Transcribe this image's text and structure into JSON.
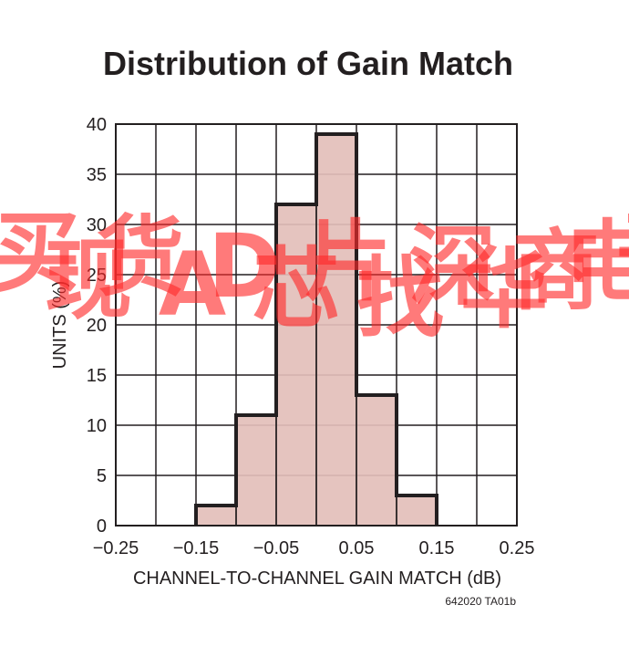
{
  "chart_data": {
    "type": "bar",
    "title": "Distribution of Gain Match",
    "xlabel": "CHANNEL-TO-CHANNEL GAIN MATCH (dB)",
    "ylabel": "UNITS (%)",
    "xlim": [
      -0.25,
      0.25
    ],
    "ylim": [
      0,
      40
    ],
    "xticks": [
      "−0.25",
      "−0.15",
      "−0.05",
      "0.05",
      "0.15",
      "0.25"
    ],
    "xtick_values": [
      -0.25,
      -0.15,
      -0.05,
      0.05,
      0.15,
      0.25
    ],
    "yticks": [
      "0",
      "5",
      "10",
      "15",
      "20",
      "25",
      "30",
      "35",
      "40"
    ],
    "ytick_values": [
      0,
      5,
      10,
      15,
      20,
      25,
      30,
      35,
      40
    ],
    "grid": true,
    "bins": [
      {
        "from": -0.15,
        "to": -0.1,
        "value": 2
      },
      {
        "from": -0.1,
        "to": -0.05,
        "value": 11
      },
      {
        "from": -0.05,
        "to": 0.0,
        "value": 32
      },
      {
        "from": 0.0,
        "to": 0.05,
        "value": 39
      },
      {
        "from": 0.05,
        "to": 0.1,
        "value": 13
      },
      {
        "from": 0.1,
        "to": 0.15,
        "value": 3
      }
    ],
    "colors": {
      "fill": "#e3bfba",
      "outline": "#231f20",
      "grid": "#231f20"
    },
    "note": "642020 TA01b"
  },
  "watermark": {
    "text": "买现货AD芯片找深华商电子",
    "color": "#ff2a2a"
  }
}
